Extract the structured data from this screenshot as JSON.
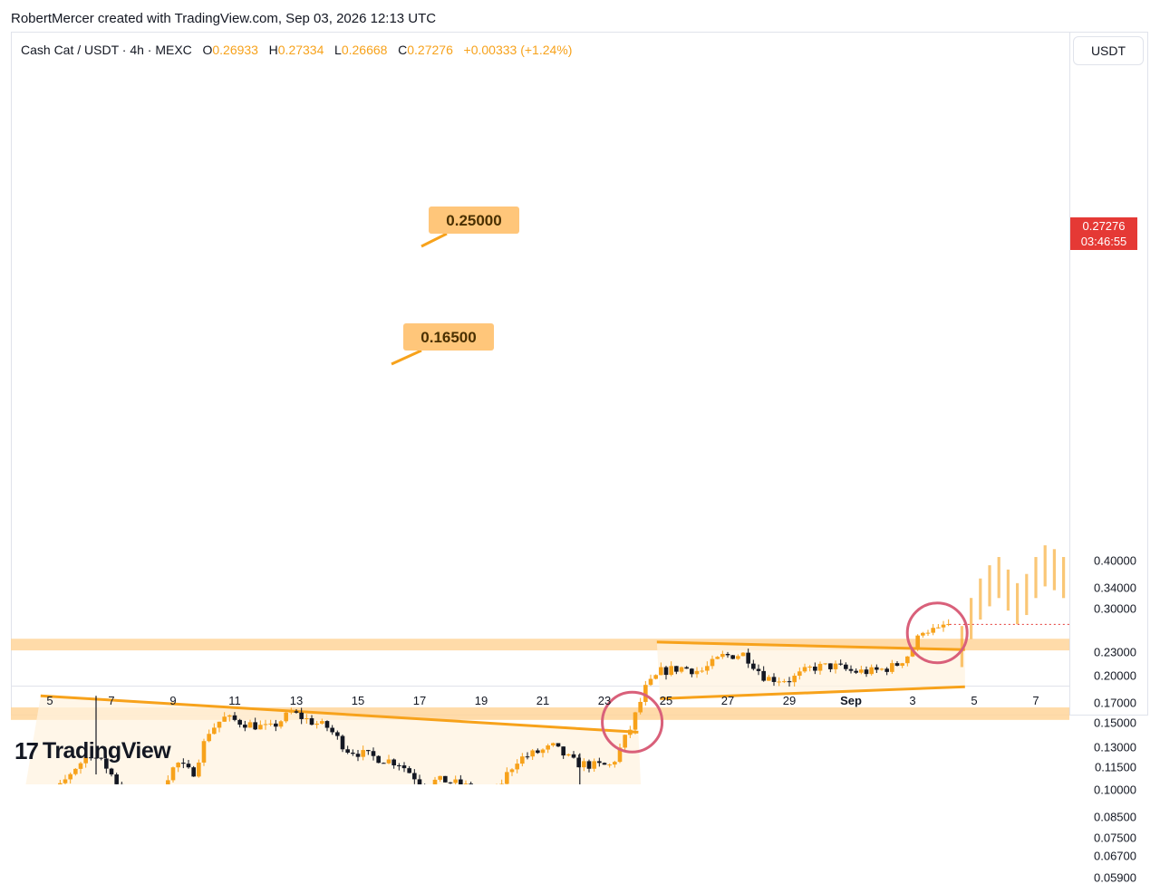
{
  "header": {
    "attribution": "RobertMercer created with TradingView.com, Sep 03, 2026 12:13 UTC"
  },
  "legend": {
    "symbol": "Cash Cat / USDT · 4h · MEXC",
    "open_label": "O",
    "open": "0.26933",
    "high_label": "H",
    "high": "0.27334",
    "low_label": "L",
    "low": "0.26668",
    "close_label": "C",
    "close": "0.27276",
    "change": "+0.00333 (+1.24%)"
  },
  "toolbar": {
    "currency": "USDT"
  },
  "price_axis": [
    "0.40000",
    "0.34000",
    "0.30000",
    "0.23000",
    "0.20000",
    "0.17000",
    "0.15000",
    "0.13000",
    "0.11500",
    "0.10000",
    "0.08500",
    "0.07500",
    "0.06700",
    "0.05900"
  ],
  "time_axis": [
    {
      "label": "5",
      "bold": false
    },
    {
      "label": "7",
      "bold": false
    },
    {
      "label": "9",
      "bold": false
    },
    {
      "label": "11",
      "bold": false
    },
    {
      "label": "13",
      "bold": false
    },
    {
      "label": "15",
      "bold": false
    },
    {
      "label": "17",
      "bold": false
    },
    {
      "label": "19",
      "bold": false
    },
    {
      "label": "21",
      "bold": false
    },
    {
      "label": "23",
      "bold": false
    },
    {
      "label": "25",
      "bold": false
    },
    {
      "label": "27",
      "bold": false
    },
    {
      "label": "29",
      "bold": false
    },
    {
      "label": "Sep",
      "bold": true
    },
    {
      "label": "3",
      "bold": false
    },
    {
      "label": "5",
      "bold": false
    },
    {
      "label": "7",
      "bold": false
    }
  ],
  "last_price": {
    "price": "0.27276",
    "countdown": "03:46:55"
  },
  "annotations": {
    "upper_level": "0.25000",
    "lower_level": "0.16500"
  },
  "brand": {
    "name": "TradingView"
  },
  "colors": {
    "bull": "#f7a21b",
    "bear": "#131722",
    "zone": "#ffd59a",
    "line": "#f7a21b",
    "circle": "#d9607a",
    "last_price": "#e53935"
  },
  "chart_data": {
    "type": "candlestick",
    "title": "Cash Cat / USDT · 4h · MEXC",
    "scale": "log",
    "ylim": [
      0.055,
      0.46
    ],
    "x_ticks": [
      "5",
      "7",
      "9",
      "11",
      "13",
      "15",
      "17",
      "19",
      "21",
      "23",
      "25",
      "27",
      "29",
      "Sep",
      "3",
      "5",
      "7"
    ],
    "support_resistance_zones": [
      {
        "label": "0.25000",
        "low": 0.233,
        "high": 0.25
      },
      {
        "label": "0.16500",
        "low": 0.153,
        "high": 0.165
      }
    ],
    "patterns": [
      {
        "type": "falling-wedge",
        "upper": [
          [
            4.7,
            0.177
          ],
          [
            24.1,
            0.142
          ]
        ],
        "lower": [
          [
            4.0,
            0.081
          ],
          [
            24.2,
            0.095
          ]
        ]
      },
      {
        "type": "falling-wedge",
        "upper": [
          [
            24.7,
            0.245
          ],
          [
            34.7,
            0.234
          ]
        ],
        "lower": [
          [
            24.8,
            0.174
          ],
          [
            34.7,
            0.187
          ]
        ]
      }
    ],
    "highlights": [
      {
        "x": 23.9,
        "y": 0.151
      },
      {
        "x": 33.8,
        "y": 0.259
      }
    ],
    "projection": {
      "from_x": 33.9,
      "to_x": 37.4,
      "target": 0.42
    },
    "last": {
      "open": 0.26933,
      "high": 0.27334,
      "low": 0.26668,
      "close": 0.27276,
      "change": "+0.00333",
      "change_pct": "+1.24%"
    }
  }
}
